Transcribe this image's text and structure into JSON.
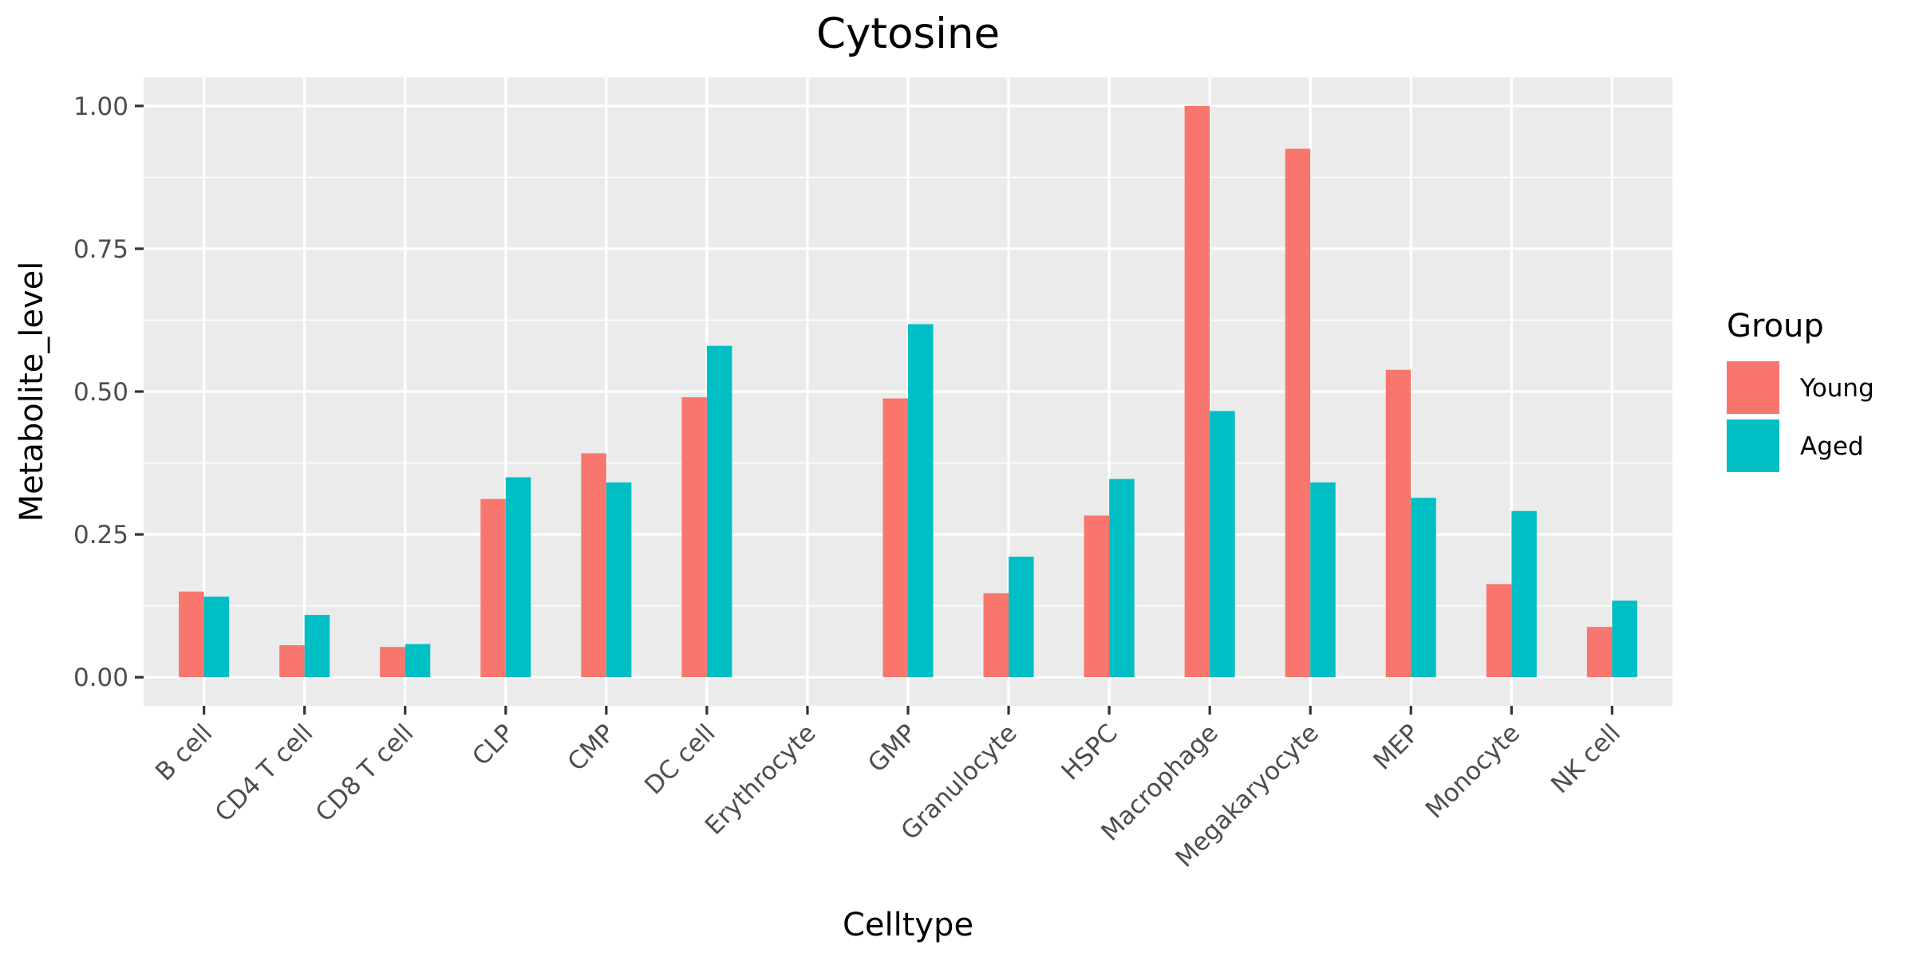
{
  "chart_data": {
    "type": "bar",
    "title": "Cytosine",
    "xlabel": "Celltype",
    "ylabel": "Metabolite_level",
    "categories": [
      "B cell",
      "CD4 T cell",
      "CD8 T cell",
      "CLP",
      "CMP",
      "DC cell",
      "Erythrocyte",
      "GMP",
      "Granulocyte",
      "HSPC",
      "Macrophage",
      "Megakaryocyte",
      "MEP",
      "Monocyte",
      "NK cell"
    ],
    "series": [
      {
        "name": "Young",
        "color": "#F8766D",
        "values": [
          0.15,
          0.056,
          0.053,
          0.312,
          0.392,
          0.49,
          0.0,
          0.488,
          0.147,
          0.283,
          1.0,
          0.925,
          0.538,
          0.163,
          0.088
        ]
      },
      {
        "name": "Aged",
        "color": "#00BFC4",
        "values": [
          0.141,
          0.109,
          0.058,
          0.35,
          0.341,
          0.58,
          0.0,
          0.618,
          0.211,
          0.347,
          0.466,
          0.341,
          0.314,
          0.291,
          0.134
        ]
      }
    ],
    "yticks": [
      "0.00",
      "0.25",
      "0.50",
      "0.75",
      "1.00"
    ],
    "ylim": [
      -0.05,
      1.05
    ],
    "legend": {
      "title": "Group",
      "position": "right"
    },
    "grid": true,
    "panel_background": "#EBEBEB",
    "grid_color": "#FFFFFF"
  }
}
